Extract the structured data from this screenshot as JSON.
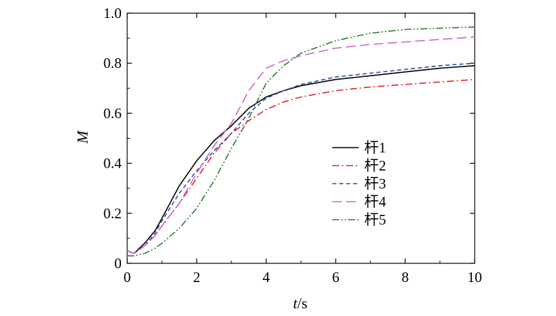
{
  "chart_data": {
    "type": "line",
    "xlabel_var": "t",
    "xlabel_unit": "/s",
    "ylabel": "M",
    "xlim": [
      0,
      10
    ],
    "ylim": [
      0,
      1.0
    ],
    "x_ticks": [
      0,
      2,
      4,
      6,
      8,
      10
    ],
    "x_tick_labels": [
      "0",
      "2",
      "4",
      "6",
      "8",
      "10"
    ],
    "y_ticks": [
      0,
      0.2,
      0.4,
      0.6,
      0.8,
      1.0
    ],
    "y_tick_labels": [
      "0",
      "0.2",
      "0.4",
      "0.6",
      "0.8",
      "1.0"
    ],
    "grid": false,
    "legend_position": "center-right",
    "series": [
      {
        "name": "杆1",
        "color": "#000000",
        "dash": "solid",
        "x": [
          0,
          0.2,
          0.5,
          0.8,
          1.0,
          1.5,
          2.0,
          2.5,
          3.0,
          3.5,
          4.0,
          4.5,
          5.0,
          6.0,
          7.0,
          8.0,
          9.0,
          10.0
        ],
        "y": [
          0.05,
          0.04,
          0.08,
          0.13,
          0.18,
          0.31,
          0.41,
          0.49,
          0.55,
          0.62,
          0.665,
          0.69,
          0.71,
          0.735,
          0.75,
          0.765,
          0.78,
          0.79
        ]
      },
      {
        "name": "杆2",
        "color": "#e8202a",
        "dash": "dashdot",
        "x": [
          0,
          0.2,
          0.5,
          0.8,
          1.0,
          1.5,
          2.0,
          2.5,
          3.0,
          3.5,
          4.0,
          4.5,
          5.0,
          6.0,
          7.0,
          8.0,
          9.0,
          10.0
        ],
        "y": [
          0.05,
          0.04,
          0.07,
          0.11,
          0.15,
          0.24,
          0.34,
          0.44,
          0.52,
          0.57,
          0.615,
          0.645,
          0.665,
          0.69,
          0.705,
          0.715,
          0.725,
          0.735
        ]
      },
      {
        "name": "杆3",
        "color": "#2f4f9e",
        "dash": "dashed",
        "x": [
          0,
          0.2,
          0.5,
          0.8,
          1.0,
          1.5,
          2.0,
          2.5,
          3.0,
          3.5,
          4.0,
          4.5,
          5.0,
          6.0,
          7.0,
          8.0,
          9.0,
          10.0
        ],
        "y": [
          0.05,
          0.04,
          0.07,
          0.12,
          0.17,
          0.28,
          0.37,
          0.45,
          0.52,
          0.6,
          0.66,
          0.69,
          0.715,
          0.745,
          0.76,
          0.775,
          0.79,
          0.8
        ]
      },
      {
        "name": "杆4",
        "color": "#cc66cc",
        "dash": "longdash",
        "x": [
          0,
          0.2,
          0.5,
          0.8,
          1.0,
          1.5,
          2.0,
          2.5,
          3.0,
          3.5,
          4.0,
          4.5,
          5.0,
          6.0,
          7.0,
          8.0,
          9.0,
          10.0
        ],
        "y": [
          0.05,
          0.04,
          0.07,
          0.11,
          0.15,
          0.24,
          0.36,
          0.47,
          0.56,
          0.69,
          0.78,
          0.81,
          0.83,
          0.86,
          0.875,
          0.885,
          0.895,
          0.905
        ]
      },
      {
        "name": "杆5",
        "color": "#2e7d2e",
        "dash": "dashdotdot",
        "x": [
          0,
          0.2,
          0.5,
          0.8,
          1.0,
          1.5,
          2.0,
          2.5,
          3.0,
          3.5,
          4.0,
          4.5,
          5.0,
          6.0,
          7.0,
          8.0,
          9.0,
          10.0
        ],
        "y": [
          0.03,
          0.03,
          0.04,
          0.06,
          0.08,
          0.14,
          0.22,
          0.33,
          0.46,
          0.58,
          0.72,
          0.79,
          0.84,
          0.89,
          0.92,
          0.935,
          0.94,
          0.945
        ]
      }
    ]
  }
}
